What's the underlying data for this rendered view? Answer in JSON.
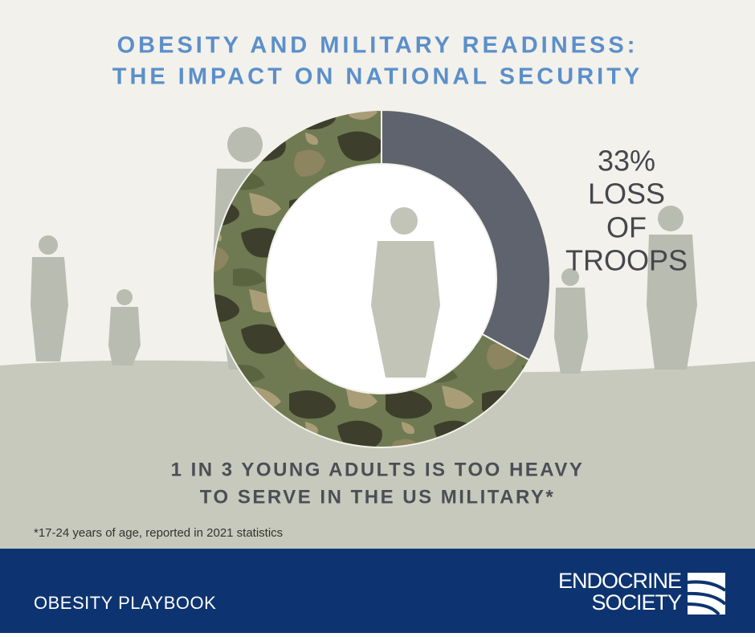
{
  "chart_data": {
    "type": "donut",
    "title": [
      "OBESITY AND MILITARY READINESS:",
      "THE IMPACT ON NATIONAL SECURITY"
    ],
    "values": [
      33,
      67
    ],
    "value_labels": [
      "33%",
      null
    ],
    "colors": [
      "#5f636d",
      "#6f7a52"
    ],
    "annotation": [
      "LOSS",
      "OF",
      "TROOPS"
    ],
    "subtitle": [
      "1 IN 3 YOUNG ADULTS IS TOO HEAVY",
      "TO SERVE IN THE US MILITARY*"
    ],
    "footnote": "*17-24 years of age, reported in 2021 statistics"
  },
  "footer": {
    "left": "OBESITY PLAYBOOK",
    "logo": [
      "ENDOCRINE",
      "SOCIETY"
    ]
  }
}
